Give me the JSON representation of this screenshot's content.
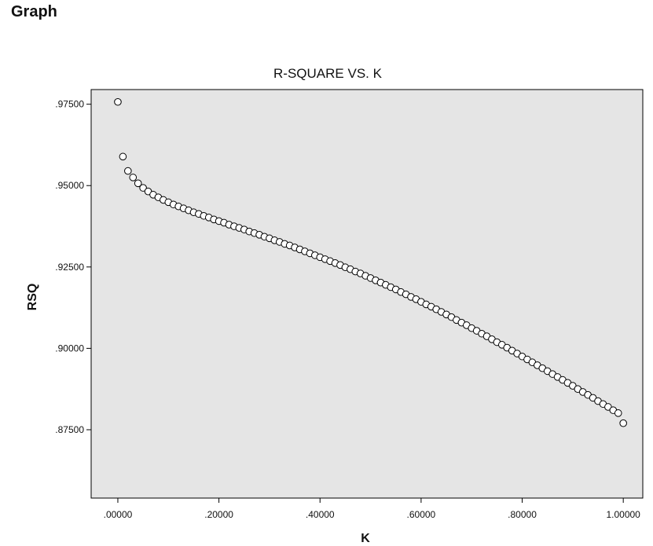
{
  "heading": "Graph",
  "chart_data": {
    "type": "scatter",
    "title": "R-SQUARE VS. K",
    "xlabel": "K",
    "ylabel": "RSQ",
    "xlim": [
      -0.0528,
      1.0386
    ],
    "ylim": [
      0.854,
      0.9795
    ],
    "x_ticks": [
      0.0,
      0.2,
      0.4,
      0.6,
      0.8,
      1.0
    ],
    "x_tick_labels": [
      ".00000",
      ".20000",
      ".40000",
      ".60000",
      ".80000",
      "1.00000"
    ],
    "y_ticks": [
      0.875,
      0.9,
      0.925,
      0.95,
      0.975
    ],
    "y_tick_labels": [
      ".87500",
      ".90000",
      ".92500",
      ".95000",
      ".97500"
    ],
    "grid": false,
    "legend": "none",
    "colors": {
      "plot_background": "#e5e5e5",
      "marker_fill": "#ffffff",
      "marker_stroke": "#000000"
    },
    "x": [
      0.0,
      0.01,
      0.02,
      0.03,
      0.04,
      0.05,
      0.06,
      0.07,
      0.08,
      0.09,
      0.1,
      0.11,
      0.12,
      0.13,
      0.14,
      0.15,
      0.16,
      0.17,
      0.18,
      0.19,
      0.2,
      0.21,
      0.22,
      0.23,
      0.24,
      0.25,
      0.26,
      0.27,
      0.28,
      0.29,
      0.3,
      0.31,
      0.32,
      0.33,
      0.34,
      0.35,
      0.36,
      0.37,
      0.38,
      0.39,
      0.4,
      0.41,
      0.42,
      0.43,
      0.44,
      0.45,
      0.46,
      0.47,
      0.48,
      0.49,
      0.5,
      0.51,
      0.52,
      0.53,
      0.54,
      0.55,
      0.56,
      0.57,
      0.58,
      0.59,
      0.6,
      0.61,
      0.62,
      0.63,
      0.64,
      0.65,
      0.66,
      0.67,
      0.68,
      0.69,
      0.7,
      0.71,
      0.72,
      0.73,
      0.74,
      0.75,
      0.76,
      0.77,
      0.78,
      0.79,
      0.8,
      0.81,
      0.82,
      0.83,
      0.84,
      0.85,
      0.86,
      0.87,
      0.88,
      0.89,
      0.9,
      0.91,
      0.92,
      0.93,
      0.94,
      0.95,
      0.96,
      0.97,
      0.98,
      0.99,
      1.0
    ],
    "y": [
      0.9757,
      0.9589,
      0.9545,
      0.9525,
      0.9507,
      0.9493,
      0.9482,
      0.9472,
      0.9464,
      0.9456,
      0.9449,
      0.9442,
      0.9436,
      0.943,
      0.9424,
      0.9418,
      0.9413,
      0.9407,
      0.9402,
      0.9396,
      0.9391,
      0.9386,
      0.938,
      0.9375,
      0.937,
      0.9365,
      0.9359,
      0.9354,
      0.9349,
      0.9343,
      0.9338,
      0.9332,
      0.9327,
      0.9321,
      0.9316,
      0.931,
      0.9304,
      0.9298,
      0.9292,
      0.9286,
      0.928,
      0.9274,
      0.9268,
      0.9262,
      0.9256,
      0.9249,
      0.9243,
      0.9236,
      0.923,
      0.9223,
      0.9216,
      0.9209,
      0.9202,
      0.9195,
      0.9188,
      0.9181,
      0.9173,
      0.9166,
      0.9158,
      0.9151,
      0.9143,
      0.9135,
      0.9128,
      0.912,
      0.9112,
      0.9104,
      0.9096,
      0.9087,
      0.9079,
      0.9071,
      0.9062,
      0.9054,
      0.9045,
      0.9037,
      0.9028,
      0.9019,
      0.9011,
      0.9002,
      0.8993,
      0.8984,
      0.8975,
      0.8966,
      0.8957,
      0.8948,
      0.8939,
      0.893,
      0.8921,
      0.8912,
      0.8903,
      0.8894,
      0.8885,
      0.8875,
      0.8866,
      0.8857,
      0.8848,
      0.8838,
      0.8829,
      0.882,
      0.881,
      0.8801,
      0.877
    ]
  }
}
